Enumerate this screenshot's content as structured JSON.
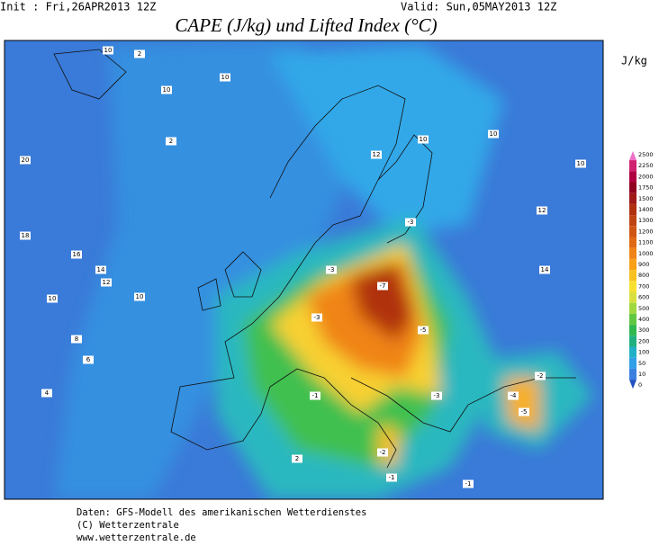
{
  "header": {
    "init": "Init : Fri,26APR2013 12Z",
    "valid": "Valid: Sun,05MAY2013 12Z",
    "title": "CAPE (J/kg) und Lifted Index (°C)"
  },
  "colorbar": {
    "unit": "J/kg",
    "levels": [
      {
        "value": 2500,
        "color": "#f070c8"
      },
      {
        "value": 2250,
        "color": "#d02070"
      },
      {
        "value": 2000,
        "color": "#b00040"
      },
      {
        "value": 1750,
        "color": "#900020"
      },
      {
        "value": 1500,
        "color": "#a01818"
      },
      {
        "value": 1400,
        "color": "#b03010"
      },
      {
        "value": 1300,
        "color": "#c04412"
      },
      {
        "value": 1200,
        "color": "#d05514"
      },
      {
        "value": 1100,
        "color": "#e06a14"
      },
      {
        "value": 1000,
        "color": "#f08418"
      },
      {
        "value": 900,
        "color": "#f8a018"
      },
      {
        "value": 800,
        "color": "#f8c020"
      },
      {
        "value": 700,
        "color": "#f8e030"
      },
      {
        "value": 600,
        "color": "#d8e040"
      },
      {
        "value": 500,
        "color": "#a0d840"
      },
      {
        "value": 400,
        "color": "#60c840"
      },
      {
        "value": 300,
        "color": "#30b850"
      },
      {
        "value": 200,
        "color": "#20b080"
      },
      {
        "value": 100,
        "color": "#22b0c8"
      },
      {
        "value": 50,
        "color": "#30a0e8"
      },
      {
        "value": 10,
        "color": "#3a80e0"
      },
      {
        "value": 0,
        "color": "#2450c0"
      }
    ]
  },
  "map_labels": [
    "10",
    "2",
    "10",
    "10",
    "2",
    "20",
    "18",
    "16",
    "14",
    "12",
    "10",
    "10",
    "8",
    "6",
    "4",
    "2",
    "-3",
    "-7",
    "-3",
    "-5",
    "-1",
    "-2",
    "-4",
    "-5",
    "-3",
    "-1",
    "12",
    "10",
    "12",
    "10",
    "14",
    "10",
    "-3",
    "-2",
    "-1"
  ],
  "footer": [
    "Daten: GFS-Modell des amerikanischen Wetterdienstes",
    "(C) Wetterzentrale",
    "www.wetterzentrale.de"
  ]
}
